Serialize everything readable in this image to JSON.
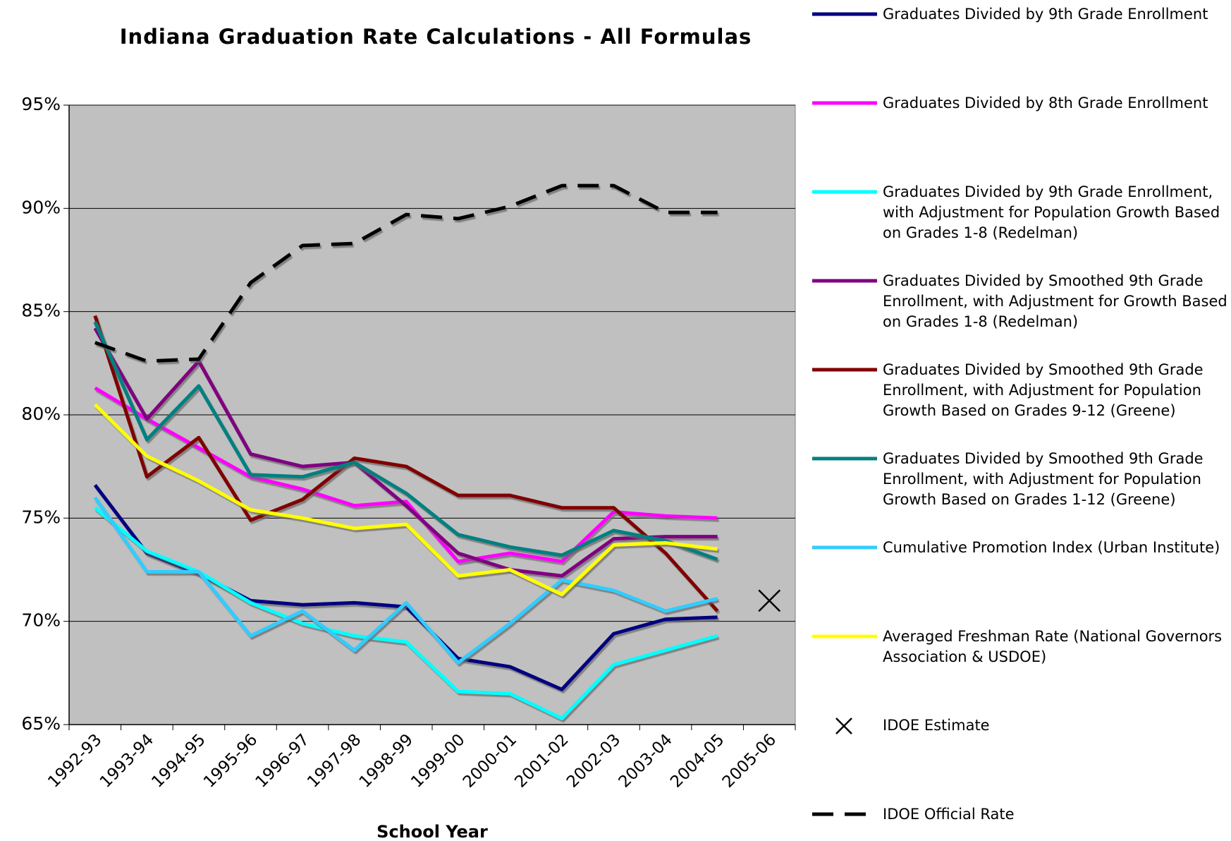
{
  "chart_data": {
    "type": "line",
    "title": "Indiana Graduation Rate Calculations - All Formulas",
    "x_label": "School Year",
    "categories": [
      "1992-93",
      "1993-94",
      "1994-95",
      "1995-96",
      "1996-97",
      "1997-98",
      "1998-99",
      "1999-00",
      "2000-01",
      "2001-02",
      "2002-03",
      "2003-04",
      "2004-05",
      "2005-06"
    ],
    "ylim": [
      65,
      95
    ],
    "yticks": [
      {
        "value": 65,
        "label": "65%"
      },
      {
        "value": 70,
        "label": "70%"
      },
      {
        "value": 75,
        "label": "75%"
      },
      {
        "value": 80,
        "label": "80%"
      },
      {
        "value": 85,
        "label": "85%"
      },
      {
        "value": 90,
        "label": "90%"
      },
      {
        "value": 95,
        "label": "95%"
      }
    ],
    "grid": true,
    "legend": "right",
    "series": [
      {
        "name": "Graduates Divided by 9th Grade Enrollment",
        "color": "#000080",
        "values": [
          76.6,
          73.3,
          72.3,
          71.0,
          70.8,
          70.9,
          70.7,
          68.2,
          67.8,
          66.7,
          69.4,
          70.1,
          70.2,
          null
        ]
      },
      {
        "name": "Graduates Divided by 8th Grade Enrollment",
        "color": "#ff00ff",
        "values": [
          81.3,
          79.8,
          78.4,
          77.0,
          76.4,
          75.6,
          75.8,
          72.9,
          73.3,
          72.9,
          75.3,
          75.1,
          75.0,
          null
        ]
      },
      {
        "name": "Graduates Divided by 9th Grade Enrollment, with Adjustment for Population Growth Based on Grades 1-8 (Redelman)",
        "color": "#00ffff",
        "values": [
          75.5,
          73.4,
          72.4,
          70.9,
          69.9,
          69.3,
          69.0,
          66.6,
          66.5,
          65.3,
          67.9,
          68.6,
          69.3,
          null
        ]
      },
      {
        "name": "Graduates Divided by Smoothed 9th Grade Enrollment, with Adjustment for Growth Based on Grades 1-8 (Redelman)",
        "color": "#800080",
        "values": [
          84.2,
          79.8,
          82.6,
          78.1,
          77.5,
          77.7,
          75.6,
          73.3,
          72.5,
          72.2,
          74.0,
          74.1,
          74.1,
          null
        ]
      },
      {
        "name": "Graduates Divided by Smoothed 9th Grade Enrollment, with Adjustment for Population Growth Based on Grades 9-12 (Greene)",
        "color": "#800000",
        "values": [
          84.8,
          77.0,
          78.9,
          74.9,
          75.9,
          77.9,
          77.5,
          76.1,
          76.1,
          75.5,
          75.5,
          73.3,
          70.5,
          null
        ]
      },
      {
        "name": "Graduates Divided by Smoothed 9th Grade Enrollment, with Adjustment for Population Growth Based on Grades 1-12 (Greene)",
        "color": "#008080",
        "values": [
          84.5,
          78.8,
          81.4,
          77.1,
          77.0,
          77.7,
          76.2,
          74.2,
          73.6,
          73.2,
          74.4,
          73.9,
          73.0,
          null
        ]
      },
      {
        "name": "Cumulative Promotion Index (Urban Institute)",
        "color": "#33ccff",
        "values": [
          76.0,
          72.4,
          72.4,
          69.3,
          70.5,
          68.6,
          70.9,
          68.0,
          69.9,
          72.0,
          71.5,
          70.5,
          71.1,
          null
        ]
      },
      {
        "name": "Averaged Freshman Rate (National Governors Association & USDOE)",
        "color": "#ffff00",
        "values": [
          80.5,
          78.0,
          76.8,
          75.4,
          75.0,
          74.5,
          74.7,
          72.2,
          72.5,
          71.3,
          73.7,
          73.8,
          73.5,
          null
        ]
      },
      {
        "name": "IDOE Estimate",
        "color": "#000000",
        "marker": "x",
        "values": [
          null,
          null,
          null,
          null,
          null,
          null,
          null,
          null,
          null,
          null,
          null,
          null,
          null,
          71.0
        ]
      },
      {
        "name": "IDOE Official Rate",
        "color": "#000000",
        "dashed": true,
        "values": [
          83.5,
          82.6,
          82.7,
          86.4,
          88.2,
          88.3,
          89.7,
          89.5,
          90.1,
          91.1,
          91.1,
          89.8,
          89.8,
          null
        ]
      }
    ]
  }
}
